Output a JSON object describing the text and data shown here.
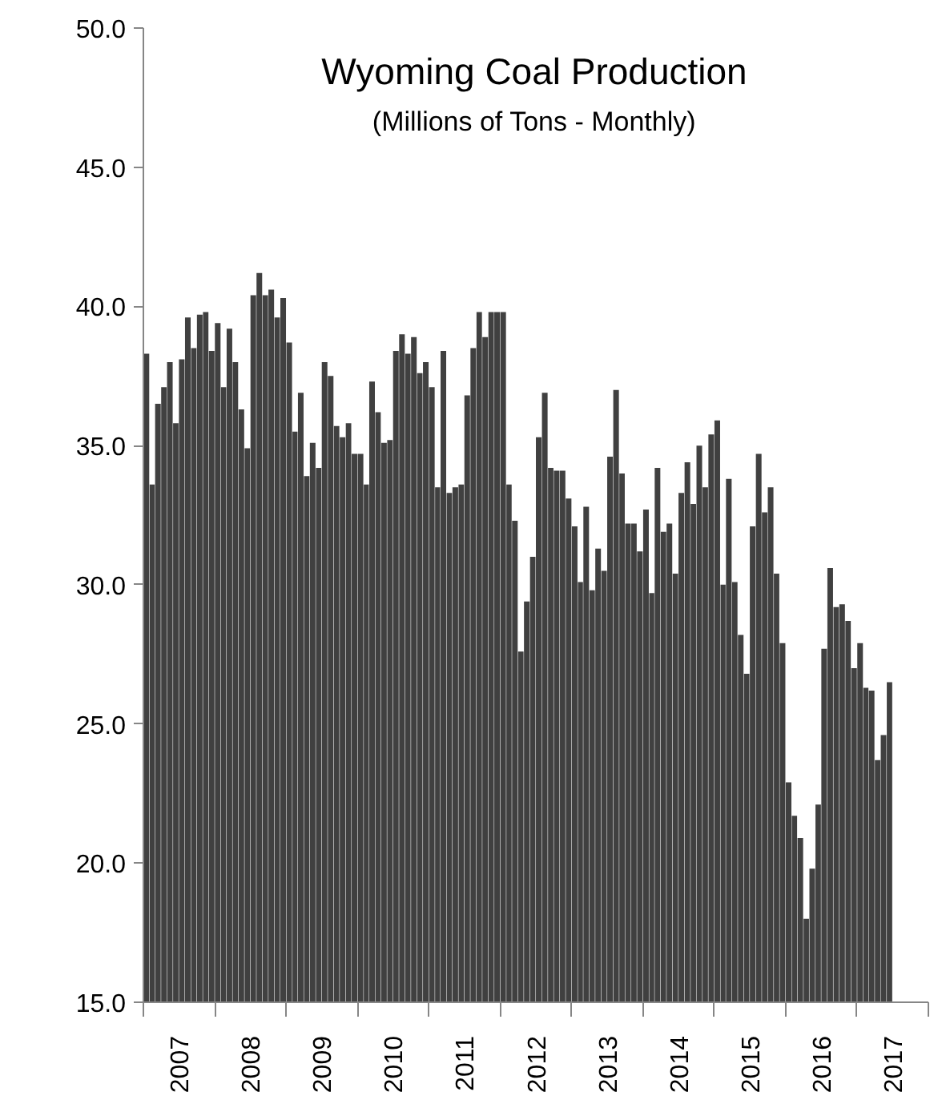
{
  "chart_data": {
    "type": "bar",
    "title": "Wyoming Coal Production",
    "subtitle": "(Millions of Tons - Monthly)",
    "x": [
      "2007-01",
      "2007-02",
      "2007-03",
      "2007-04",
      "2007-05",
      "2007-06",
      "2007-07",
      "2007-08",
      "2007-09",
      "2007-10",
      "2007-11",
      "2007-12",
      "2008-01",
      "2008-02",
      "2008-03",
      "2008-04",
      "2008-05",
      "2008-06",
      "2008-07",
      "2008-08",
      "2008-09",
      "2008-10",
      "2008-11",
      "2008-12",
      "2009-01",
      "2009-02",
      "2009-03",
      "2009-04",
      "2009-05",
      "2009-06",
      "2009-07",
      "2009-08",
      "2009-09",
      "2009-10",
      "2009-11",
      "2009-12",
      "2010-01",
      "2010-02",
      "2010-03",
      "2010-04",
      "2010-05",
      "2010-06",
      "2010-07",
      "2010-08",
      "2010-09",
      "2010-10",
      "2010-11",
      "2010-12",
      "2011-01",
      "2011-02",
      "2011-03",
      "2011-04",
      "2011-05",
      "2011-06",
      "2011-07",
      "2011-08",
      "2011-09",
      "2011-10",
      "2011-11",
      "2011-12",
      "2012-01",
      "2012-02",
      "2012-03",
      "2012-04",
      "2012-05",
      "2012-06",
      "2012-07",
      "2012-08",
      "2012-09",
      "2012-10",
      "2012-11",
      "2012-12",
      "2013-01",
      "2013-02",
      "2013-03",
      "2013-04",
      "2013-05",
      "2013-06",
      "2013-07",
      "2013-08",
      "2013-09",
      "2013-10",
      "2013-11",
      "2013-12",
      "2014-01",
      "2014-02",
      "2014-03",
      "2014-04",
      "2014-05",
      "2014-06",
      "2014-07",
      "2014-08",
      "2014-09",
      "2014-10",
      "2014-11",
      "2014-12",
      "2015-01",
      "2015-02",
      "2015-03",
      "2015-04",
      "2015-05",
      "2015-06",
      "2015-07",
      "2015-08",
      "2015-09",
      "2015-10",
      "2015-11",
      "2015-12",
      "2016-01",
      "2016-02",
      "2016-03",
      "2016-04",
      "2016-05",
      "2016-06",
      "2016-07",
      "2016-08",
      "2016-09",
      "2016-10",
      "2016-11",
      "2016-12",
      "2017-01",
      "2017-02",
      "2017-03",
      "2017-04",
      "2017-05",
      "2017-06"
    ],
    "values": [
      38.3,
      33.6,
      36.5,
      37.1,
      38.0,
      35.8,
      38.1,
      39.6,
      38.5,
      39.7,
      39.8,
      38.4,
      39.4,
      37.1,
      39.2,
      38.0,
      36.3,
      34.9,
      40.4,
      41.2,
      40.4,
      40.6,
      39.6,
      40.3,
      38.7,
      35.5,
      36.9,
      33.9,
      35.1,
      34.2,
      38.0,
      37.5,
      35.7,
      35.3,
      35.8,
      34.7,
      34.7,
      33.6,
      37.3,
      36.2,
      35.1,
      35.2,
      38.4,
      39.0,
      38.3,
      38.9,
      37.6,
      38.0,
      37.1,
      33.5,
      38.4,
      33.3,
      33.5,
      33.6,
      36.8,
      38.5,
      39.8,
      38.9,
      39.8,
      39.8,
      39.8,
      33.6,
      32.3,
      27.6,
      29.4,
      31.0,
      35.3,
      36.9,
      34.2,
      34.1,
      34.1,
      33.1,
      32.1,
      30.1,
      32.8,
      29.8,
      31.3,
      30.5,
      34.6,
      37.0,
      34.0,
      32.2,
      32.2,
      31.2,
      32.7,
      29.7,
      34.2,
      31.9,
      32.2,
      30.4,
      33.3,
      34.4,
      32.9,
      35.0,
      33.5,
      35.4,
      35.9,
      30.0,
      33.8,
      30.1,
      28.2,
      26.8,
      32.1,
      34.7,
      32.6,
      33.5,
      30.4,
      27.9,
      22.9,
      21.7,
      20.9,
      18.0,
      19.8,
      22.1,
      27.7,
      30.6,
      29.2,
      29.3,
      28.7,
      27.0,
      27.9,
      26.3,
      26.2,
      23.7,
      24.6,
      26.5
    ],
    "color": "#404040",
    "xlim": [
      "2007-01",
      "2018-01"
    ],
    "xticks": [
      {
        "value": "2007-01",
        "label": null
      },
      {
        "value": "2008-01",
        "label": null
      },
      {
        "value": "2009-01",
        "label": null
      },
      {
        "value": "2010-01",
        "label": null
      },
      {
        "value": "2011-01",
        "label": null
      },
      {
        "value": "2012-01",
        "label": null
      },
      {
        "value": "2013-01",
        "label": null
      },
      {
        "value": "2014-01",
        "label": null
      },
      {
        "value": "2015-01",
        "label": null
      },
      {
        "value": "2016-01",
        "label": null
      },
      {
        "value": "2017-01",
        "label": null
      },
      {
        "value": "2018-01",
        "label": null
      },
      {
        "value": "2007-07",
        "label": "2007"
      },
      {
        "value": "2008-07",
        "label": "2008"
      },
      {
        "value": "2009-07",
        "label": "2009"
      },
      {
        "value": "2010-07",
        "label": "2010"
      },
      {
        "value": "2011-07",
        "label": "2011"
      },
      {
        "value": "2012-07",
        "label": "2012"
      },
      {
        "value": "2013-07",
        "label": "2013"
      },
      {
        "value": "2014-07",
        "label": "2014"
      },
      {
        "value": "2015-07",
        "label": "2015"
      },
      {
        "value": "2016-07",
        "label": "2016"
      },
      {
        "value": "2017-07",
        "label": "2017"
      }
    ],
    "ylim": [
      15,
      50
    ],
    "yticks": [
      {
        "value": 15,
        "label": "15.0"
      },
      {
        "value": 20,
        "label": "20.0"
      },
      {
        "value": 25,
        "label": "25.0"
      },
      {
        "value": 30,
        "label": "30.0"
      },
      {
        "value": 35,
        "label": "35.0"
      },
      {
        "value": 40,
        "label": "40.0"
      },
      {
        "value": 45,
        "label": "45.0"
      },
      {
        "value": 50,
        "label": "50.0"
      }
    ]
  }
}
